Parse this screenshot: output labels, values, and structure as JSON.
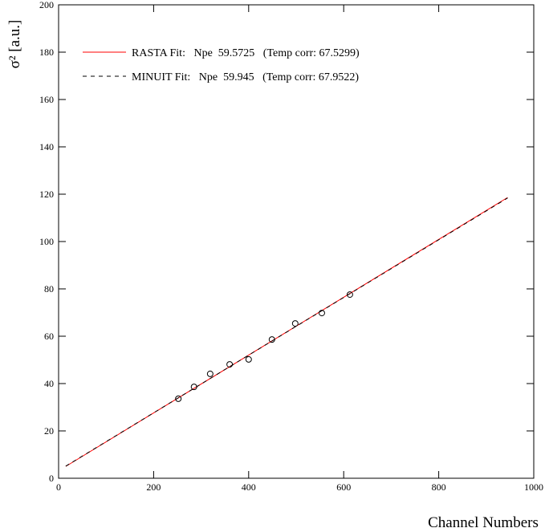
{
  "chart_data": {
    "type": "scatter",
    "xlabel": "Channel Numbers",
    "ylabel": "σ² [a.u.]",
    "xlim": [
      0,
      1000
    ],
    "xticks": [
      0,
      200,
      400,
      600,
      800,
      1000
    ],
    "ylim": [
      0,
      200
    ],
    "yticks": [
      0,
      20,
      40,
      60,
      80,
      100,
      120,
      140,
      160,
      180,
      200
    ],
    "series": [
      {
        "type": "line",
        "name": "RASTA Fit:   Npe  59.5725   (Temp corr: 67.5299)",
        "color": "#ff0000",
        "dash": false,
        "x": [
          15,
          945
        ],
        "values": [
          5.0,
          118.6
        ]
      },
      {
        "type": "line",
        "name": "MINUIT Fit:   Npe  59.945   (Temp corr: 67.9522)",
        "color": "#000000",
        "dash": true,
        "x": [
          15,
          945
        ],
        "values": [
          5.1,
          118.4
        ]
      },
      {
        "type": "scatter",
        "color": "#000000",
        "x": [
          252,
          285,
          319,
          360,
          400,
          449,
          498,
          554,
          613
        ],
        "values": [
          33.6,
          38.6,
          44.1,
          48.1,
          50.2,
          58.6,
          65.4,
          69.8,
          77.6
        ]
      }
    ]
  }
}
